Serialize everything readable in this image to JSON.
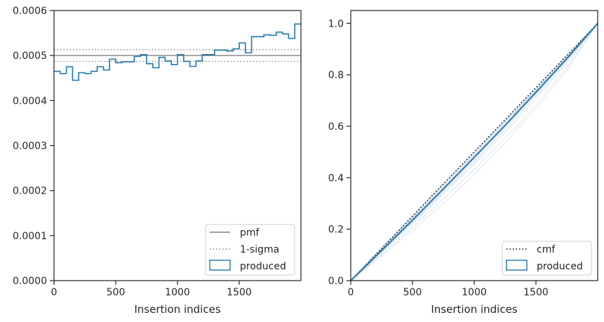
{
  "chart_data": [
    {
      "type": "line",
      "xlabel": "Insertion indices",
      "ylabel": "",
      "xlim": [
        0,
        2000
      ],
      "ylim": [
        0,
        0.0006
      ],
      "x_ticks": [
        0,
        500,
        1000,
        1500
      ],
      "x_tick_labels": [
        "0",
        "500",
        "1000",
        "1500"
      ],
      "y_ticks": [
        0,
        0.0001,
        0.0002,
        0.0003,
        0.0004,
        0.0005,
        0.0006
      ],
      "y_tick_labels": [
        "0.0000",
        "0.0001",
        "0.0002",
        "0.0003",
        "0.0004",
        "0.0005",
        "0.0006"
      ],
      "legend_placement": "lower-right",
      "legend": [
        "pmf",
        "1-sigma",
        "produced"
      ],
      "reference_lines": [
        {
          "name": "pmf",
          "style": "solid",
          "color": "#808080",
          "y": 0.0005
        },
        {
          "name": "1-sigma",
          "style": "dotted",
          "color": "#808080",
          "y": 0.000513
        },
        {
          "name": "1-sigma",
          "style": "dotted",
          "color": "#808080",
          "y": 0.000487
        }
      ],
      "series": [
        {
          "name": "produced",
          "style": "step",
          "color": "#2a7fb0",
          "bin_edges": [
            0,
            50,
            100,
            150,
            200,
            250,
            300,
            350,
            400,
            450,
            500,
            550,
            600,
            650,
            700,
            750,
            800,
            850,
            900,
            950,
            1000,
            1050,
            1100,
            1150,
            1200,
            1250,
            1300,
            1350,
            1400,
            1450,
            1500,
            1550,
            1600,
            1650,
            1700,
            1750,
            1800,
            1850,
            1900,
            1950,
            2000
          ],
          "values": [
            0.000465,
            0.00046,
            0.000475,
            0.000445,
            0.000462,
            0.00046,
            0.000465,
            0.000475,
            0.000468,
            0.000492,
            0.000484,
            0.000486,
            0.000486,
            0.000498,
            0.000502,
            0.000482,
            0.000473,
            0.000496,
            0.000488,
            0.00048,
            0.000502,
            0.000487,
            0.000476,
            0.000488,
            0.000502,
            0.000502,
            0.000512,
            0.000512,
            0.00051,
            0.000515,
            0.000528,
            0.000506,
            0.000542,
            0.000542,
            0.000546,
            0.000545,
            0.000552,
            0.000548,
            0.000538,
            0.00057
          ]
        }
      ]
    },
    {
      "type": "line",
      "xlabel": "Insertion indices",
      "ylabel": "",
      "xlim": [
        0,
        2000
      ],
      "ylim": [
        0,
        1.05
      ],
      "x_ticks": [
        0,
        500,
        1000,
        1500
      ],
      "x_tick_labels": [
        "0",
        "500",
        "1000",
        "1500"
      ],
      "y_ticks": [
        0,
        0.2,
        0.4,
        0.6,
        0.8,
        1.0
      ],
      "y_tick_labels": [
        "0.0",
        "0.2",
        "0.4",
        "0.6",
        "0.8",
        "1.0"
      ],
      "legend_placement": "lower-right",
      "legend": [
        "cmf",
        "produced"
      ],
      "series": [
        {
          "name": "cmf",
          "style": "dotted",
          "color": "#000000",
          "x": [
            0,
            2000
          ],
          "y": [
            0,
            1.0
          ]
        },
        {
          "name": "produced",
          "style": "solid",
          "color": "#2a7fb0",
          "x": [
            0,
            250,
            500,
            750,
            1000,
            1250,
            1500,
            1750,
            2000
          ],
          "y": [
            0,
            0.117,
            0.235,
            0.356,
            0.479,
            0.603,
            0.732,
            0.863,
            1.0
          ]
        }
      ],
      "bundle": {
        "color": "#b3c7dc",
        "x": [
          0,
          250,
          500,
          750,
          1000,
          1250,
          1500,
          1750,
          2000
        ],
        "curves": [
          [
            0,
            0.125,
            0.25,
            0.376,
            0.5,
            0.626,
            0.752,
            0.876,
            1.0
          ],
          [
            0,
            0.108,
            0.22,
            0.335,
            0.452,
            0.575,
            0.705,
            0.845,
            1.0
          ],
          [
            0,
            0.115,
            0.228,
            0.342,
            0.46,
            0.585,
            0.716,
            0.852,
            1.0
          ],
          [
            0,
            0.121,
            0.243,
            0.365,
            0.49,
            0.615,
            0.742,
            0.87,
            1.0
          ],
          [
            0,
            0.102,
            0.207,
            0.318,
            0.433,
            0.553,
            0.682,
            0.83,
            1.0
          ],
          [
            0,
            0.128,
            0.254,
            0.378,
            0.499,
            0.621,
            0.746,
            0.872,
            1.0
          ],
          [
            0,
            0.112,
            0.226,
            0.345,
            0.466,
            0.592,
            0.723,
            0.858,
            1.0
          ],
          [
            0,
            0.118,
            0.24,
            0.362,
            0.486,
            0.612,
            0.738,
            0.866,
            1.0
          ],
          [
            0,
            0.096,
            0.196,
            0.3,
            0.412,
            0.535,
            0.668,
            0.818,
            1.0
          ],
          [
            0,
            0.124,
            0.246,
            0.37,
            0.494,
            0.618,
            0.744,
            0.871,
            1.0
          ]
        ]
      }
    }
  ]
}
